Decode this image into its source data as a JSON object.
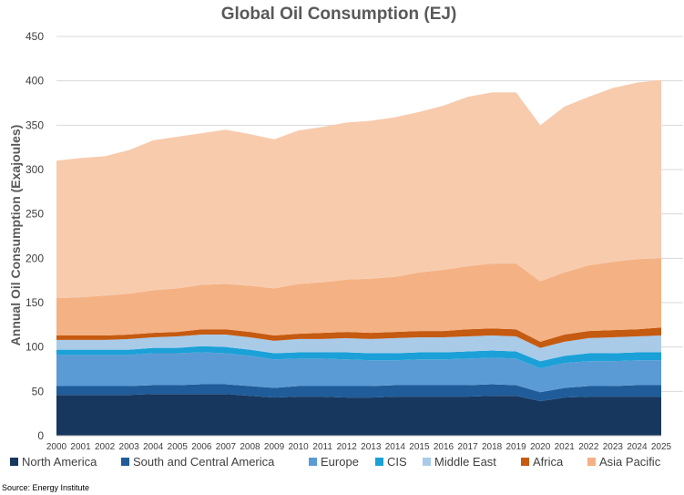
{
  "chart_data": {
    "type": "area",
    "stacked": true,
    "title": "Global Oil Consumption (EJ)",
    "ylabel": "Annual Oil Consumption (Exajoules)",
    "xlabel": "",
    "ylim": [
      0,
      450
    ],
    "yticks": [
      0,
      50,
      100,
      150,
      200,
      250,
      300,
      350,
      400,
      450
    ],
    "grid": "horizontal",
    "legend_position": "bottom",
    "source": "Source: Energy Institute",
    "x": [
      "2000",
      "2001",
      "2002",
      "2003",
      "2004",
      "2005",
      "2006",
      "2007",
      "2008",
      "2009",
      "2010",
      "2011",
      "2012",
      "2013",
      "2014",
      "2015",
      "2016",
      "2017",
      "2018",
      "2019",
      "2020",
      "2021",
      "2022",
      "2023",
      "2024",
      "2025"
    ],
    "series": [
      {
        "name": "North America",
        "color": "#17375e",
        "values": [
          46,
          46,
          46,
          46,
          47,
          47,
          47,
          47,
          45,
          43,
          44,
          44,
          43,
          43,
          44,
          44,
          44,
          44,
          45,
          45,
          39,
          43,
          44,
          44,
          44,
          44
        ]
      },
      {
        "name": "South and Central America",
        "color": "#1f5c99",
        "values": [
          10,
          10,
          10,
          10,
          10,
          10,
          11,
          11,
          11,
          11,
          12,
          12,
          13,
          13,
          13,
          13,
          13,
          13,
          13,
          12,
          10,
          11,
          12,
          12,
          13,
          13
        ]
      },
      {
        "name": "Europe",
        "color": "#5b9bd5",
        "values": [
          35,
          35,
          35,
          35,
          36,
          36,
          36,
          35,
          34,
          32,
          31,
          31,
          30,
          29,
          28,
          29,
          29,
          30,
          30,
          30,
          27,
          28,
          28,
          28,
          28,
          28
        ]
      },
      {
        "name": "CIS",
        "color": "#1ba1d8",
        "values": [
          6,
          6,
          6,
          6,
          6,
          6,
          7,
          7,
          7,
          7,
          7,
          7,
          8,
          8,
          8,
          8,
          8,
          8,
          8,
          8,
          8,
          8,
          9,
          9,
          9,
          9
        ]
      },
      {
        "name": "Middle East",
        "color": "#a9cbe8",
        "values": [
          11,
          11,
          11,
          12,
          12,
          13,
          13,
          14,
          14,
          14,
          15,
          15,
          16,
          16,
          17,
          17,
          17,
          17,
          17,
          17,
          15,
          16,
          17,
          18,
          18,
          19
        ]
      },
      {
        "name": "Africa",
        "color": "#c55a11",
        "values": [
          5,
          5,
          5,
          5,
          5,
          5,
          6,
          6,
          6,
          6,
          6,
          7,
          7,
          7,
          7,
          7,
          7,
          8,
          8,
          8,
          7,
          8,
          8,
          8,
          8,
          9
        ]
      },
      {
        "name": "Asia Pacific",
        "color": "#f4b183",
        "values": [
          42,
          43,
          45,
          46,
          48,
          49,
          50,
          51,
          52,
          53,
          56,
          57,
          59,
          61,
          62,
          66,
          69,
          71,
          73,
          74,
          68,
          70,
          74,
          77,
          79,
          78
        ]
      },
      {
        "name": "Asia Pacific",
        "legend": false,
        "color": "#f8cbad",
        "values": [
          155,
          157,
          157,
          162,
          169,
          171,
          171,
          174,
          171,
          168,
          173,
          175,
          177,
          178,
          180,
          181,
          185,
          191,
          193,
          193,
          176,
          187,
          190,
          196,
          199,
          201
        ]
      }
    ]
  }
}
